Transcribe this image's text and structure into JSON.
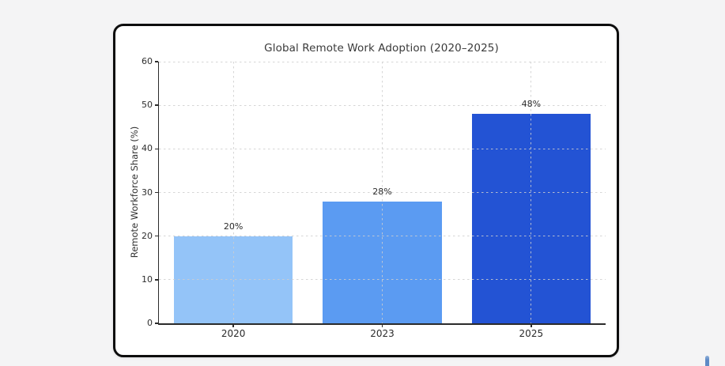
{
  "page": {
    "background": "#f4f4f5"
  },
  "card": {
    "background": "#ffffff",
    "border_color": "#0d0d0d"
  },
  "chart_data": {
    "type": "bar",
    "title": "Global Remote Work Adoption (2020–2025)",
    "xlabel": "",
    "ylabel": "Remote Workforce Share (%)",
    "categories": [
      "2020",
      "2023",
      "2025"
    ],
    "values": [
      20,
      28,
      48
    ],
    "bar_labels": [
      "20%",
      "28%",
      "48%"
    ],
    "bar_colors": [
      "#94c4f8",
      "#5b9bf2",
      "#2353d4"
    ],
    "ylim": [
      0,
      60
    ],
    "yticks": [
      0,
      10,
      20,
      30,
      40,
      50,
      60
    ],
    "ytick_labels": [
      "0",
      "10",
      "20",
      "30",
      "40",
      "50",
      "60"
    ],
    "grid": "dashed",
    "grid_color": "#cecece",
    "legend": "none",
    "bar_width_fraction": 0.8
  },
  "artifacts": {
    "scroll_thumb_color": "#5e8ac6"
  }
}
